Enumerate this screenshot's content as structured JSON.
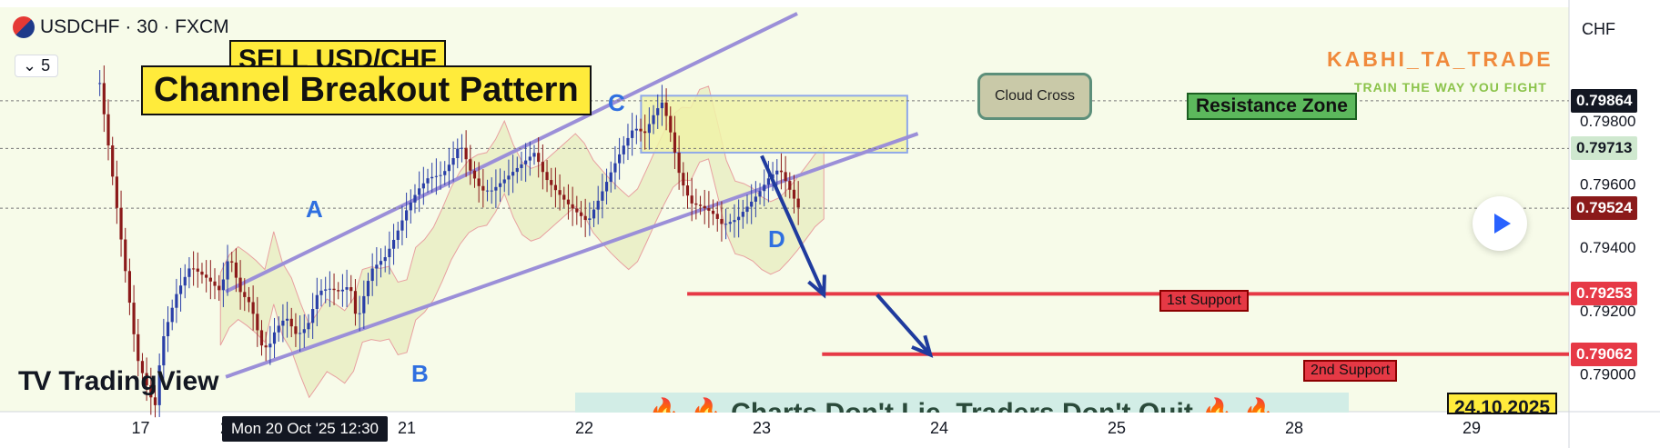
{
  "header": {
    "symbol_line": "USDCHF · 30 · FXCM",
    "interval_chip": "⌄ 5",
    "flag_icon": "usd-chf-flag-icon"
  },
  "titles": {
    "sell": "SELL USD/CHF",
    "main": "Channel Breakout Pattern"
  },
  "watermark": {
    "brand": "KABHI_TA_TRADE",
    "tagline": "TRAIN THE WAY YOU FIGHT"
  },
  "labels": {
    "cloud_cross": "Cloud Cross",
    "resistance_zone": "Resistance Zone",
    "support_1": "1st Support",
    "support_2": "2nd Support"
  },
  "footer": {
    "banner": "🔥 🔥 Charts Don't Lie, Traders Don't Quit 🔥 🔥",
    "date": "24.10.2025",
    "logo": "TradingView",
    "crosshair_time": "Mon 20 Oct '25  12:30"
  },
  "axis": {
    "currency": "CHF"
  },
  "colors": {
    "bull": "#2a3fa8",
    "bear": "#8b1a1a",
    "channel": "#9b8fd8",
    "cloud_fill": "#f3f6cf",
    "support_line": "#e63946",
    "arrow": "#1f3b9e",
    "resistance_fill": "#f0f2a8"
  },
  "chart_data": {
    "type": "candlestick",
    "symbol": "USDCHF",
    "timeframe": "30",
    "source": "FXCM",
    "ylabel": "CHF",
    "ylim": [
      0.7888,
      0.8016
    ],
    "y_ticks": [
      "0.79800",
      "0.79600",
      "0.79400",
      "0.79200",
      "0.79000"
    ],
    "y_tick_values": [
      0.798,
      0.796,
      0.794,
      0.792,
      0.79
    ],
    "x_ticks": [
      "17",
      "20",
      "21",
      "22",
      "23",
      "24",
      "25",
      "28",
      "29"
    ],
    "x_tick_positions": [
      0.5,
      1.0,
      2.0,
      3.0,
      4.0,
      5.0,
      6.0,
      7.0,
      8.0
    ],
    "price_tags": [
      {
        "value": "0.79864",
        "level": 0.79864,
        "bg": "#131722",
        "fg": "#ffffff"
      },
      {
        "value": "0.79713",
        "level": 0.79713,
        "bg": "#cfe8cf",
        "fg": "#131722"
      },
      {
        "value": "0.79524",
        "level": 0.79524,
        "bg": "#8b1a1a",
        "fg": "#ffffff"
      },
      {
        "value": "0.79253",
        "level": 0.79253,
        "bg": "#e63946",
        "fg": "#ffffff"
      },
      {
        "value": "0.79062",
        "level": 0.79062,
        "bg": "#e63946",
        "fg": "#ffffff"
      }
    ],
    "price_path": [
      [
        0.27,
        0.7992
      ],
      [
        0.36,
        0.7955
      ],
      [
        0.48,
        0.7905
      ],
      [
        0.58,
        0.7889
      ],
      [
        0.62,
        0.791
      ],
      [
        0.7,
        0.7925
      ],
      [
        0.78,
        0.7934
      ],
      [
        0.88,
        0.793
      ],
      [
        0.95,
        0.7926
      ],
      [
        1.0,
        0.7938
      ],
      [
        1.06,
        0.7926
      ],
      [
        1.12,
        0.7922
      ],
      [
        1.18,
        0.7909
      ],
      [
        1.22,
        0.7908
      ],
      [
        1.26,
        0.7914
      ],
      [
        1.32,
        0.7918
      ],
      [
        1.38,
        0.7912
      ],
      [
        1.44,
        0.7915
      ],
      [
        1.5,
        0.7926
      ],
      [
        1.56,
        0.7927
      ],
      [
        1.62,
        0.7926
      ],
      [
        1.68,
        0.7928
      ],
      [
        1.72,
        0.7916
      ],
      [
        1.76,
        0.7925
      ],
      [
        1.8,
        0.7933
      ],
      [
        1.84,
        0.7935
      ],
      [
        1.88,
        0.7937
      ],
      [
        1.94,
        0.7944
      ],
      [
        2.0,
        0.7952
      ],
      [
        2.06,
        0.7958
      ],
      [
        2.12,
        0.7962
      ],
      [
        2.2,
        0.7963
      ],
      [
        2.26,
        0.7968
      ],
      [
        2.3,
        0.7973
      ],
      [
        2.36,
        0.7964
      ],
      [
        2.42,
        0.7958
      ],
      [
        2.48,
        0.7958
      ],
      [
        2.56,
        0.7962
      ],
      [
        2.64,
        0.7966
      ],
      [
        2.72,
        0.797
      ],
      [
        2.78,
        0.7962
      ],
      [
        2.84,
        0.7958
      ],
      [
        2.92,
        0.7953
      ],
      [
        2.98,
        0.795
      ],
      [
        3.02,
        0.7948
      ],
      [
        3.08,
        0.7955
      ],
      [
        3.16,
        0.7965
      ],
      [
        3.22,
        0.7972
      ],
      [
        3.28,
        0.7978
      ],
      [
        3.34,
        0.7976
      ],
      [
        3.4,
        0.7983
      ],
      [
        3.44,
        0.7986
      ],
      [
        3.48,
        0.7978
      ],
      [
        3.54,
        0.7962
      ],
      [
        3.6,
        0.7954
      ],
      [
        3.66,
        0.7953
      ],
      [
        3.72,
        0.7951
      ],
      [
        3.78,
        0.7947
      ],
      [
        3.86,
        0.7949
      ],
      [
        3.92,
        0.7953
      ],
      [
        3.98,
        0.7957
      ],
      [
        4.04,
        0.7962
      ],
      [
        4.1,
        0.7965
      ],
      [
        4.16,
        0.7958
      ],
      [
        4.22,
        0.7951
      ]
    ],
    "channel": {
      "upper": [
        [
          0.98,
          0.7926
        ],
        [
          4.2,
          0.8014
        ]
      ],
      "lower": [
        [
          0.98,
          0.7899
        ],
        [
          4.88,
          0.7976
        ]
      ]
    },
    "cloud_span": [
      0.95,
      4.38
    ],
    "resistance_zone": {
      "x": [
        3.32,
        4.82
      ],
      "y": [
        0.797,
        0.7988
      ]
    },
    "support_lines": [
      {
        "label": "1st Support",
        "level": 0.79253,
        "x_start": 3.58
      },
      {
        "label": "2nd Support",
        "level": 0.79062,
        "x_start": 4.34
      }
    ],
    "projection_arrows": [
      [
        [
          4.0,
          0.7969
        ],
        [
          4.35,
          0.7925
        ]
      ],
      [
        [
          4.65,
          0.7925
        ],
        [
          4.95,
          0.7906
        ]
      ]
    ],
    "wave_points": [
      {
        "label": "A",
        "x": 1.0,
        "y": 0.7938
      },
      {
        "label": "B",
        "x": 1.26,
        "y": 0.7903
      },
      {
        "label": "C",
        "x": 2.24,
        "y": 0.7977
      },
      {
        "label": "D",
        "x": 2.92,
        "y": 0.7944
      }
    ]
  }
}
